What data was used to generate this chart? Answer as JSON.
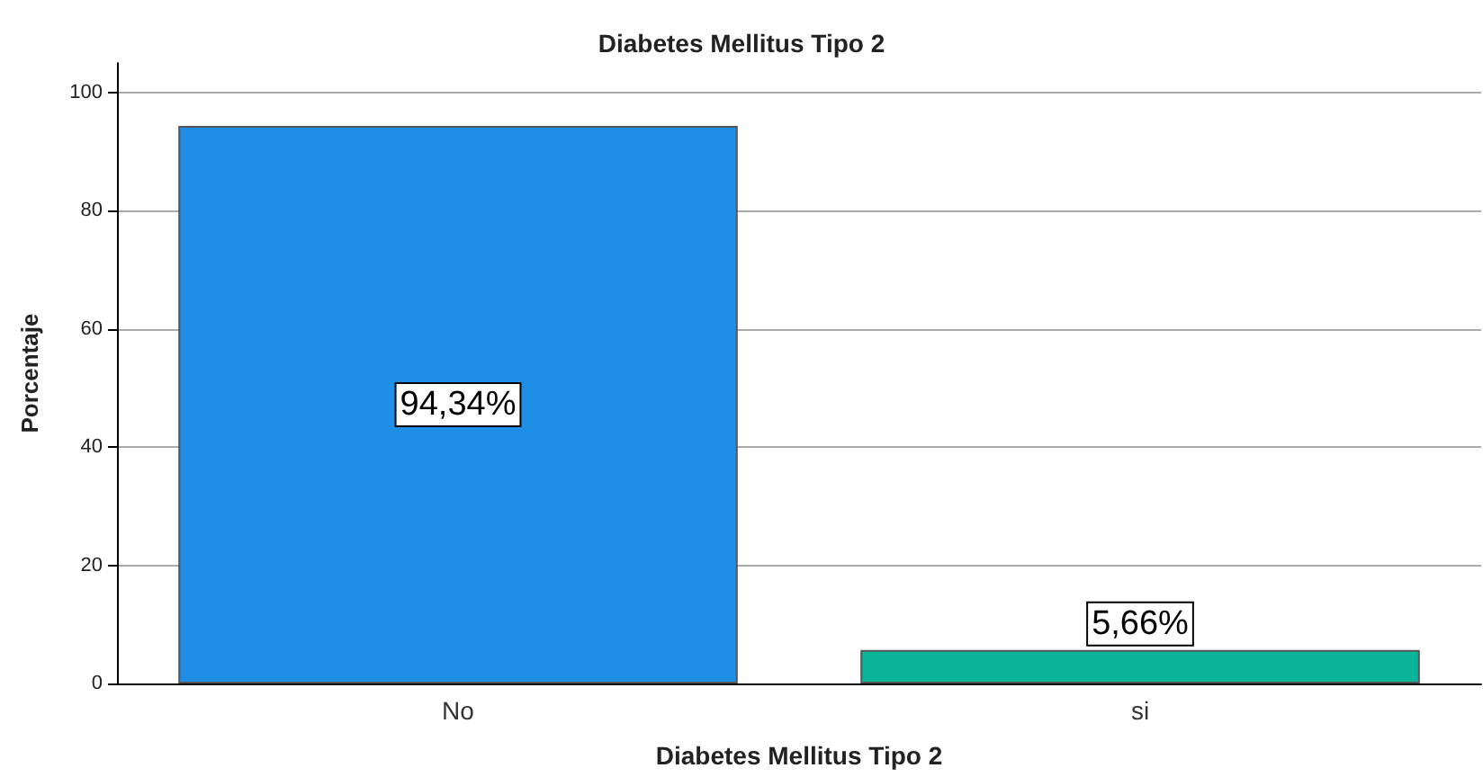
{
  "chart_data": {
    "type": "bar",
    "title": "Diabetes Mellitus Tipo 2",
    "xlabel": "Diabetes Mellitus Tipo 2",
    "ylabel": "Porcentaje",
    "categories": [
      "No",
      "si"
    ],
    "values": [
      94.34,
      5.66
    ],
    "colors": [
      "#1f8fe6",
      "#0ab59a"
    ],
    "value_labels": [
      "94,34%",
      "5,66%"
    ],
    "ylim": [
      0,
      105
    ],
    "yticks": [
      0,
      20,
      40,
      60,
      80,
      100
    ],
    "grid": "y"
  }
}
